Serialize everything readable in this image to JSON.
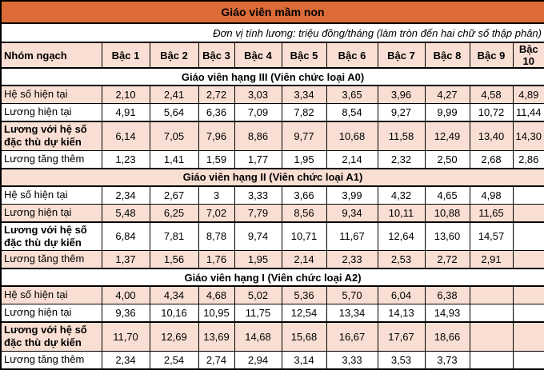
{
  "title": "Giáo viên mầm non",
  "unit_note": "Đơn vị tính lương: triệu đồng/tháng (làm tròn đến hai chữ số thập phân)",
  "columns": [
    "Nhóm ngạch",
    "Bậc 1",
    "Bậc 2",
    "Bậc 3",
    "Bậc 4",
    "Bậc 5",
    "Bậc 6",
    "Bậc 7",
    "Bậc 8",
    "Bậc 9",
    "Bậc 10"
  ],
  "sections": [
    {
      "heading": "Giáo viên hạng III (Viên chức loại A0)",
      "rows": [
        {
          "label": "Hệ số hiện tại",
          "emphasis": false,
          "values": [
            "2,10",
            "2,41",
            "2,72",
            "3,03",
            "3,34",
            "3,65",
            "3,96",
            "4,27",
            "4,58",
            "4,89"
          ]
        },
        {
          "label": "Lương hiện tại",
          "emphasis": false,
          "values": [
            "4,91",
            "5,64",
            "6,36",
            "7,09",
            "7,82",
            "8,54",
            "9,27",
            "9,99",
            "10,72",
            "11,44"
          ]
        },
        {
          "label": "Lương với hệ số đặc thù dự kiến",
          "emphasis": true,
          "values": [
            "6,14",
            "7,05",
            "7,96",
            "8,86",
            "9,77",
            "10,68",
            "11,58",
            "12,49",
            "13,40",
            "14,30"
          ]
        },
        {
          "label": "Lương tăng thêm",
          "emphasis": false,
          "values": [
            "1,23",
            "1,41",
            "1,59",
            "1,77",
            "1,95",
            "2,14",
            "2,32",
            "2,50",
            "2,68",
            "2,86"
          ]
        }
      ]
    },
    {
      "heading": "Giáo viên hạng II (Viên chức loại A1)",
      "rows": [
        {
          "label": "Hệ số hiện tại",
          "emphasis": false,
          "values": [
            "2,34",
            "2,67",
            "3",
            "3,33",
            "3,66",
            "3,99",
            "4,32",
            "4,65",
            "4,98",
            ""
          ]
        },
        {
          "label": "Lương hiện tại",
          "emphasis": false,
          "values": [
            "5,48",
            "6,25",
            "7,02",
            "7,79",
            "8,56",
            "9,34",
            "10,11",
            "10,88",
            "11,65",
            ""
          ]
        },
        {
          "label": "Lương với hệ số đặc thù dự kiến",
          "emphasis": true,
          "values": [
            "6,84",
            "7,81",
            "8,78",
            "9,74",
            "10,71",
            "11,67",
            "12,64",
            "13,60",
            "14,57",
            ""
          ]
        },
        {
          "label": "Lương tăng thêm",
          "emphasis": false,
          "values": [
            "1,37",
            "1,56",
            "1,76",
            "1,95",
            "2,14",
            "2,33",
            "2,53",
            "2,72",
            "2,91",
            ""
          ]
        }
      ]
    },
    {
      "heading": "Giáo viên hạng I (Viên chức loại A2)",
      "rows": [
        {
          "label": "Hệ số hiện tại",
          "emphasis": false,
          "values": [
            "4,00",
            "4,34",
            "4,68",
            "5,02",
            "5,36",
            "5,70",
            "6,04",
            "6,38",
            "",
            ""
          ]
        },
        {
          "label": "Lương hiện tại",
          "emphasis": false,
          "values": [
            "9,36",
            "10,16",
            "10,95",
            "11,75",
            "12,54",
            "13,34",
            "14,13",
            "14,93",
            "",
            ""
          ]
        },
        {
          "label": "Lương với hệ số đặc thù dự kiến",
          "emphasis": true,
          "values": [
            "11,70",
            "12,69",
            "13,69",
            "14,68",
            "15,68",
            "16,67",
            "17,67",
            "18,66",
            "",
            ""
          ]
        },
        {
          "label": "Lương tăng thêm",
          "emphasis": false,
          "values": [
            "2,34",
            "2,54",
            "2,74",
            "2,94",
            "3,14",
            "3,33",
            "3,53",
            "3,73",
            "",
            ""
          ]
        }
      ]
    }
  ],
  "colors": {
    "title_bg": "#DC6B38",
    "shade_bg": "#F9DFD3",
    "border": "#000000",
    "text": "#000000"
  }
}
